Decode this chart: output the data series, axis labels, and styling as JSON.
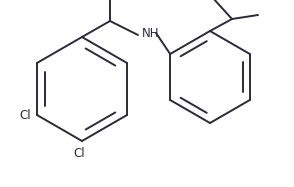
{
  "bg_color": "#ffffff",
  "line_color": "#2a2a3a",
  "line_width": 1.4,
  "font_size": 8.5,
  "font_color": "#2a2a3a",
  "cl1_label": "Cl",
  "cl2_label": "Cl",
  "nh_label": "NH"
}
